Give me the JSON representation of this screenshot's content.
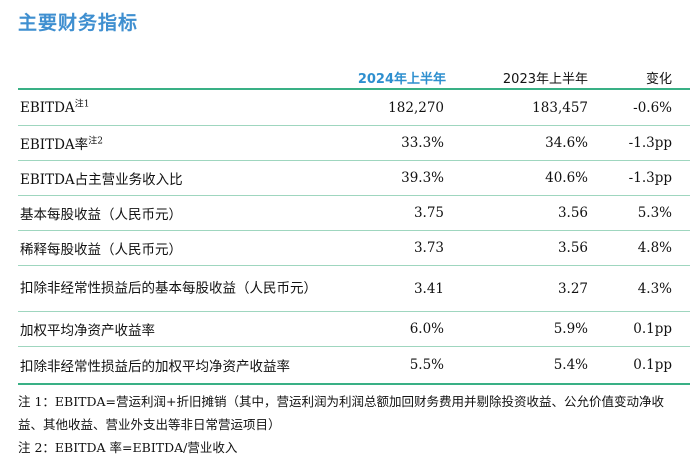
{
  "page_title": "主要财务指标",
  "table": {
    "headers": {
      "col_2024": "2024年上半年",
      "col_2023": "2023年上半年",
      "col_change": "变化"
    },
    "rows": [
      {
        "label": "EBITDA",
        "mark": "注1",
        "v2024": "182,270",
        "v2023": "183,457",
        "change": "-0.6%"
      },
      {
        "label": "EBITDA率",
        "mark": "注2",
        "v2024": "33.3%",
        "v2023": "34.6%",
        "change": "-1.3pp"
      },
      {
        "label": "EBITDA占主营业务收入比",
        "mark": "",
        "v2024": "39.3%",
        "v2023": "40.6%",
        "change": "-1.3pp"
      },
      {
        "label": "基本每股收益（人民币元）",
        "mark": "",
        "v2024": "3.75",
        "v2023": "3.56",
        "change": "5.3%"
      },
      {
        "label": "稀释每股收益（人民币元）",
        "mark": "",
        "v2024": "3.73",
        "v2023": "3.56",
        "change": "4.8%"
      },
      {
        "label": "扣除非经常性损益后的基本每股收益（人民币元）",
        "mark": "",
        "v2024": "3.41",
        "v2023": "3.27",
        "change": "4.3%"
      },
      {
        "label": "加权平均净资产收益率",
        "mark": "",
        "v2024": "6.0%",
        "v2023": "5.9%",
        "change": "0.1pp"
      },
      {
        "label": "扣除非经常性损益后的加权平均净资产收益率",
        "mark": "",
        "v2024": "5.5%",
        "v2023": "5.4%",
        "change": "0.1pp"
      }
    ]
  },
  "notes": {
    "note1_line1": "注 1：EBITDA=营运利润+折旧摊销（其中，营运利润为利润总额加回财务费用并剔除投资收益、公允价值变动净收",
    "note1_line2": "益、其他收益、营业外支出等非日常营运项目）",
    "note2": "注 2：EBITDA 率=EBITDA/营业收入"
  }
}
